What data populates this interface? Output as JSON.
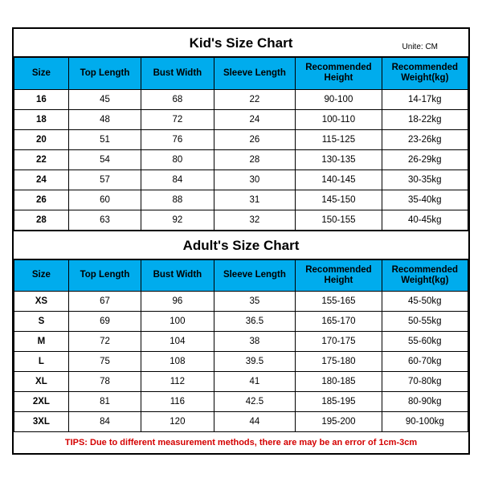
{
  "kids": {
    "title": "Kid's Size Chart",
    "unit": "Unite: CM",
    "columns": [
      "Size",
      "Top Length",
      "Bust Width",
      "Sleeve Length",
      "Recommended Height",
      "Recommended Weight(kg)"
    ],
    "rows": [
      [
        "16",
        "45",
        "68",
        "22",
        "90-100",
        "14-17kg"
      ],
      [
        "18",
        "48",
        "72",
        "24",
        "100-110",
        "18-22kg"
      ],
      [
        "20",
        "51",
        "76",
        "26",
        "115-125",
        "23-26kg"
      ],
      [
        "22",
        "54",
        "80",
        "28",
        "130-135",
        "26-29kg"
      ],
      [
        "24",
        "57",
        "84",
        "30",
        "140-145",
        "30-35kg"
      ],
      [
        "26",
        "60",
        "88",
        "31",
        "145-150",
        "35-40kg"
      ],
      [
        "28",
        "63",
        "92",
        "32",
        "150-155",
        "40-45kg"
      ]
    ]
  },
  "adults": {
    "title": "Adult's Size Chart",
    "columns": [
      "Size",
      "Top Length",
      "Bust Width",
      "Sleeve Length",
      "Recommended Height",
      "Recommended Weight(kg)"
    ],
    "rows": [
      [
        "XS",
        "67",
        "96",
        "35",
        "155-165",
        "45-50kg"
      ],
      [
        "S",
        "69",
        "100",
        "36.5",
        "165-170",
        "50-55kg"
      ],
      [
        "M",
        "72",
        "104",
        "38",
        "170-175",
        "55-60kg"
      ],
      [
        "L",
        "75",
        "108",
        "39.5",
        "175-180",
        "60-70kg"
      ],
      [
        "XL",
        "78",
        "112",
        "41",
        "180-185",
        "70-80kg"
      ],
      [
        "2XL",
        "81",
        "116",
        "42.5",
        "185-195",
        "80-90kg"
      ],
      [
        "3XL",
        "84",
        "120",
        "44",
        "195-200",
        "90-100kg"
      ]
    ]
  },
  "tips": "TIPS: Due to different measurement methods, there are may be an error of 1cm-3cm",
  "style": {
    "header_bg": "#00aced",
    "border_color": "#000000",
    "tips_color": "#d40000",
    "background": "#ffffff",
    "col_widths_pct": [
      12,
      16,
      16,
      18,
      19,
      19
    ],
    "title_fontsize": 17,
    "cell_fontsize": 11.5,
    "tips_fontsize": 11
  }
}
